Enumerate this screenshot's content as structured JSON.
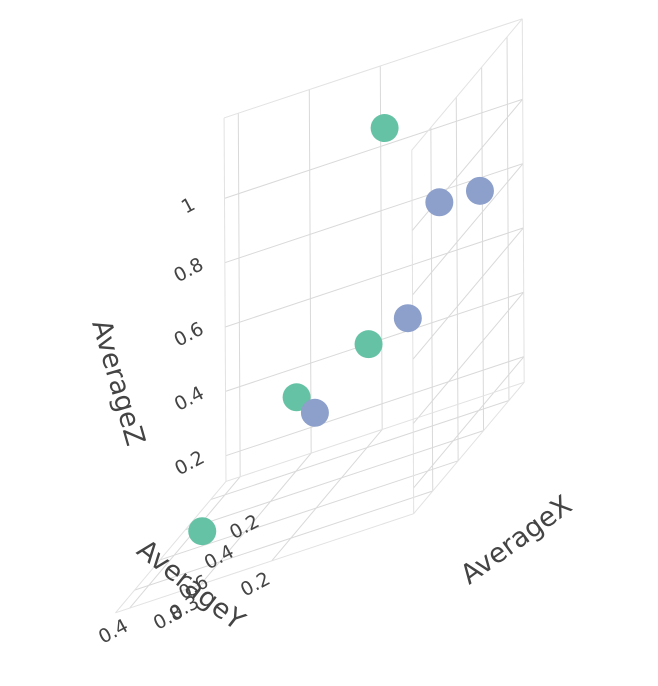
{
  "chart_data": {
    "type": "scatter3d",
    "axes": {
      "x": {
        "label": "AverageX",
        "ticks": [
          "0.2",
          "0.4",
          "0.6",
          "0.8"
        ]
      },
      "y": {
        "label": "AverageY",
        "ticks": [
          "0.2",
          "0.3",
          "0.4"
        ]
      },
      "z": {
        "label": "AverageZ",
        "ticks": [
          "0.2",
          "0.4",
          "0.6",
          "0.8",
          "1"
        ]
      }
    },
    "series": [
      {
        "color": "#66c2a5",
        "points": [
          {
            "x": 0.16,
            "y": 0.18,
            "z": 1.08
          },
          {
            "x": 0.35,
            "y": 0.17,
            "z": 0.49
          },
          {
            "x": 0.47,
            "y": 0.25,
            "z": 0.44
          },
          {
            "x": 0.88,
            "y": 0.31,
            "z": 0.26
          }
        ]
      },
      {
        "color": "#8da0cb",
        "points": [
          {
            "x": 0.18,
            "y": 0.1,
            "z": 0.8
          },
          {
            "x": 0.14,
            "y": 0.05,
            "z": 0.78
          },
          {
            "x": 0.32,
            "y": 0.12,
            "z": 0.52
          },
          {
            "x": 0.55,
            "y": 0.21,
            "z": 0.4
          }
        ]
      }
    ]
  }
}
